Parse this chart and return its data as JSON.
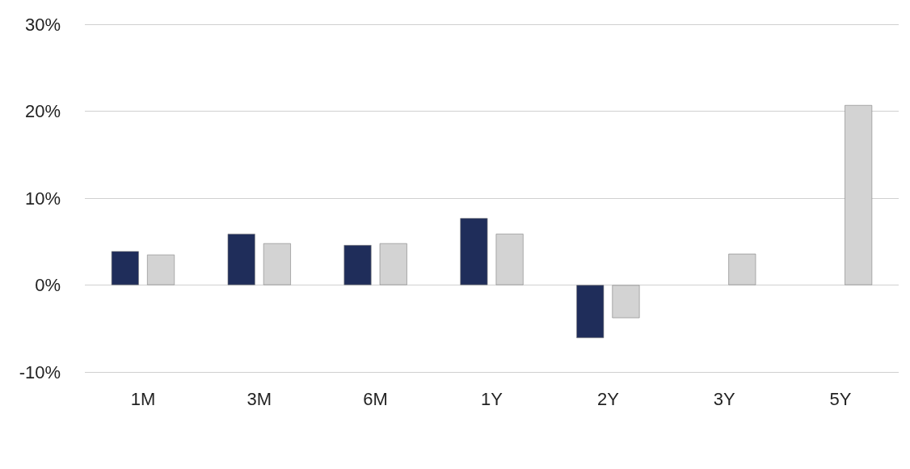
{
  "chart_data": {
    "type": "bar",
    "categories": [
      "1M",
      "3M",
      "6M",
      "1Y",
      "2Y",
      "3Y",
      "5Y"
    ],
    "series": [
      {
        "color": "#1f2d5a",
        "values": [
          3.9,
          5.9,
          4.6,
          7.7,
          -6.1,
          null,
          null
        ]
      },
      {
        "color": "#d3d3d3",
        "values": [
          3.5,
          4.8,
          4.8,
          5.9,
          -3.8,
          3.6,
          20.7
        ]
      }
    ],
    "ylim": [
      -10,
      30
    ],
    "yticks": [
      {
        "value": -10,
        "label": "-10%"
      },
      {
        "value": 0,
        "label": "0%"
      },
      {
        "value": 10,
        "label": "10%"
      },
      {
        "value": 20,
        "label": "20%"
      },
      {
        "value": 30,
        "label": "30%"
      }
    ],
    "grid": "y"
  }
}
